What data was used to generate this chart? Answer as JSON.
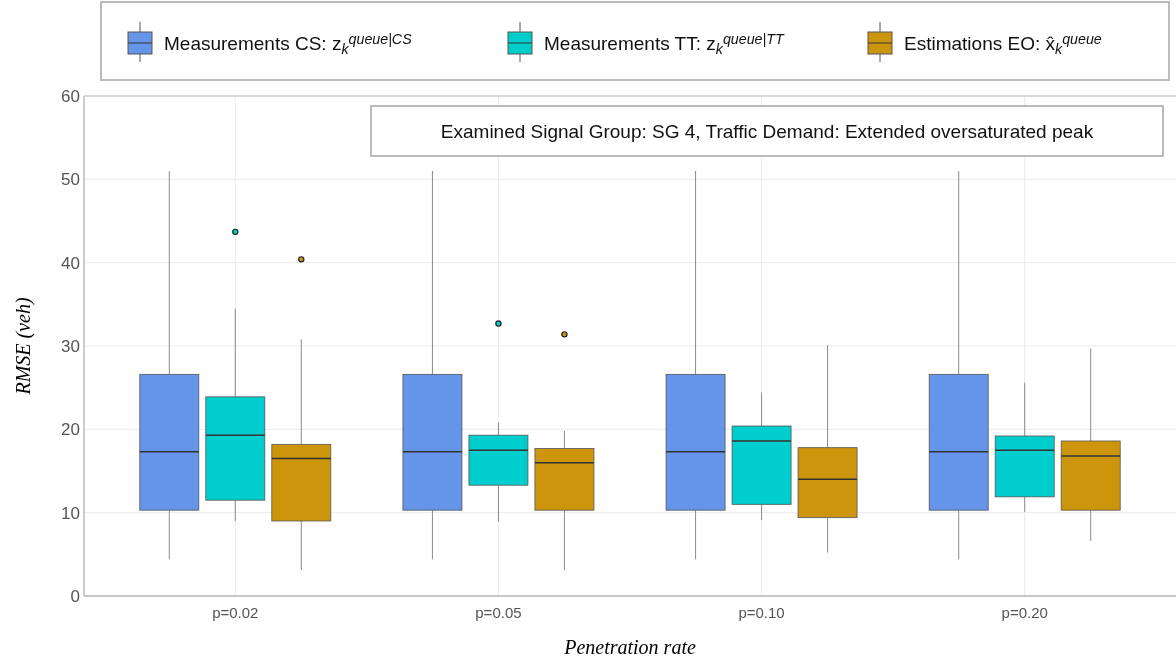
{
  "chart_data": {
    "type": "box",
    "xlabel": "Penetration rate",
    "ylabel": "RMSE (veh)",
    "categories": [
      "p=0.02",
      "p=0.05",
      "p=0.10",
      "p=0.20"
    ],
    "ylim": [
      0,
      60
    ],
    "yticks": [
      0,
      10,
      20,
      30,
      40,
      50,
      60
    ],
    "grid": true,
    "legend": "top",
    "annotations": [
      "Examined Signal Group: SG 4, Traffic Demand: Extended oversaturated peak"
    ],
    "series": [
      {
        "name": "Measurements CS: z$_{k}$$^{queue|CS}$",
        "color": "#6495e8",
        "boxes": [
          {
            "low": 4.4,
            "q1": 10.3,
            "median": 17.3,
            "q3": 26.6,
            "high": 51
          },
          {
            "low": 4.4,
            "q1": 10.3,
            "median": 17.3,
            "q3": 26.6,
            "high": 51
          },
          {
            "low": 4.4,
            "q1": 10.3,
            "median": 17.3,
            "q3": 26.6,
            "high": 51
          },
          {
            "low": 4.4,
            "q1": 10.3,
            "median": 17.3,
            "q3": 26.6,
            "high": 51
          }
        ]
      },
      {
        "name": "Measurements TT: z$_{k}$$^{queue|TT}$",
        "color": "#00cdcd",
        "boxes": [
          {
            "low": 9.0,
            "q1": 11.5,
            "median": 19.3,
            "q3": 23.9,
            "high": 34.5,
            "outliers": [
              43.7
            ]
          },
          {
            "low": 8.9,
            "q1": 13.3,
            "median": 17.5,
            "q3": 19.3,
            "high": 20.8,
            "outliers": [
              32.7
            ]
          },
          {
            "low": 9.1,
            "q1": 11.0,
            "median": 18.6,
            "q3": 20.4,
            "high": 24.4
          },
          {
            "low": 10.1,
            "q1": 11.9,
            "median": 17.5,
            "q3": 19.2,
            "high": 25.6
          }
        ]
      },
      {
        "name": "Estimations EO: x̂$_{k}$$^{queue}$",
        "color": "#cd950c",
        "boxes": [
          {
            "low": 3.1,
            "q1": 9.0,
            "median": 16.5,
            "q3": 18.2,
            "high": 30.8,
            "outliers": [
              40.4
            ]
          },
          {
            "low": 3.1,
            "q1": 10.3,
            "median": 16.0,
            "q3": 17.7,
            "high": 19.8,
            "outliers": [
              31.4
            ]
          },
          {
            "low": 5.2,
            "q1": 9.4,
            "median": 14.0,
            "q3": 17.8,
            "high": 30.1
          },
          {
            "low": 6.6,
            "q1": 10.3,
            "median": 16.8,
            "q3": 18.6,
            "high": 29.7
          }
        ]
      }
    ]
  }
}
